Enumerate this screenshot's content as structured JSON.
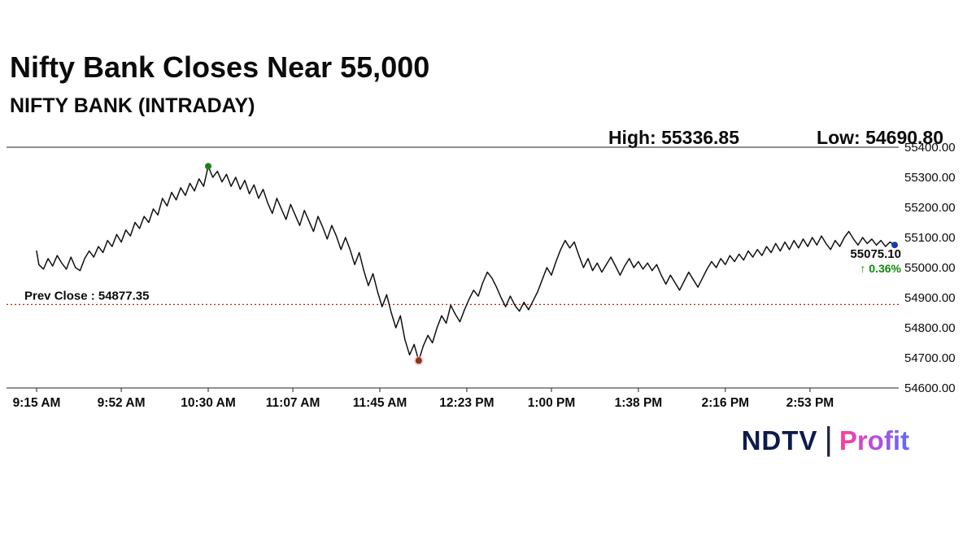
{
  "header": {
    "title": "Nifty Bank Closes Near 55,000",
    "subtitle": "NIFTY BANK (INTRADAY)",
    "high_label": "High: 55336.85",
    "low_label": "Low: 54690.80"
  },
  "footer": {
    "brand_left": "NDTV",
    "brand_divider": "|",
    "brand_right": "Profit"
  },
  "chart_data": {
    "type": "line",
    "title": "NIFTY BANK (INTRADAY)",
    "line_color": "#111111",
    "ylim": [
      54600,
      55400
    ],
    "xlim_minutes": [
      555,
      930
    ],
    "grid": "off",
    "high": 55336.85,
    "low": 54690.8,
    "last": 55075.1,
    "last_label": "55075.10",
    "change_label": "↑ 0.36%",
    "change_color": "#0b8a0b",
    "prev_close": {
      "value": 54877.35,
      "label": "Prev Close : 54877.35",
      "color": "#cc2200"
    },
    "markers": {
      "high_color": "#1e7d1e",
      "low_color": "#8b3a12",
      "low_halo": "#ffaad4",
      "last_color": "#1a3aa8"
    },
    "y_ticks": [
      {
        "v": 55400,
        "label": "55400.00"
      },
      {
        "v": 55300,
        "label": "55300.00"
      },
      {
        "v": 55200,
        "label": "55200.00"
      },
      {
        "v": 55100,
        "label": "55100.00"
      },
      {
        "v": 55000,
        "label": "55000.00"
      },
      {
        "v": 54900,
        "label": "54900.00"
      },
      {
        "v": 54800,
        "label": "54800.00"
      },
      {
        "v": 54700,
        "label": "54700.00"
      },
      {
        "v": 54600,
        "label": "54600.00"
      }
    ],
    "x_ticks": [
      {
        "t": 555,
        "label": "9:15 AM"
      },
      {
        "t": 592,
        "label": "9:52 AM"
      },
      {
        "t": 630,
        "label": "10:30 AM"
      },
      {
        "t": 667,
        "label": "11:07 AM"
      },
      {
        "t": 705,
        "label": "11:45 AM"
      },
      {
        "t": 743,
        "label": "12:23 PM"
      },
      {
        "t": 780,
        "label": "1:00 PM"
      },
      {
        "t": 818,
        "label": "1:38 PM"
      },
      {
        "t": 856,
        "label": "2:16 PM"
      },
      {
        "t": 893,
        "label": "2:53 PM"
      }
    ],
    "points": [
      [
        555,
        55055
      ],
      [
        556,
        55010
      ],
      [
        558,
        54995
      ],
      [
        560,
        55030
      ],
      [
        562,
        55005
      ],
      [
        564,
        55040
      ],
      [
        566,
        55015
      ],
      [
        568,
        54995
      ],
      [
        570,
        55035
      ],
      [
        572,
        55000
      ],
      [
        574,
        54990
      ],
      [
        576,
        55030
      ],
      [
        578,
        55055
      ],
      [
        580,
        55035
      ],
      [
        582,
        55070
      ],
      [
        584,
        55050
      ],
      [
        586,
        55090
      ],
      [
        588,
        55070
      ],
      [
        590,
        55110
      ],
      [
        592,
        55085
      ],
      [
        594,
        55125
      ],
      [
        596,
        55105
      ],
      [
        598,
        55150
      ],
      [
        600,
        55130
      ],
      [
        602,
        55170
      ],
      [
        604,
        55150
      ],
      [
        606,
        55195
      ],
      [
        608,
        55175
      ],
      [
        610,
        55230
      ],
      [
        612,
        55205
      ],
      [
        614,
        55250
      ],
      [
        616,
        55225
      ],
      [
        618,
        55265
      ],
      [
        620,
        55240
      ],
      [
        622,
        55280
      ],
      [
        624,
        55255
      ],
      [
        626,
        55295
      ],
      [
        628,
        55270
      ],
      [
        630,
        55336.85
      ],
      [
        632,
        55300
      ],
      [
        634,
        55320
      ],
      [
        636,
        55285
      ],
      [
        638,
        55310
      ],
      [
        640,
        55270
      ],
      [
        642,
        55300
      ],
      [
        644,
        55260
      ],
      [
        646,
        55290
      ],
      [
        648,
        55245
      ],
      [
        650,
        55275
      ],
      [
        652,
        55230
      ],
      [
        654,
        55260
      ],
      [
        656,
        55215
      ],
      [
        658,
        55180
      ],
      [
        660,
        55230
      ],
      [
        662,
        55195
      ],
      [
        664,
        55160
      ],
      [
        666,
        55210
      ],
      [
        668,
        55175
      ],
      [
        670,
        55140
      ],
      [
        672,
        55190
      ],
      [
        674,
        55155
      ],
      [
        676,
        55120
      ],
      [
        678,
        55170
      ],
      [
        680,
        55135
      ],
      [
        682,
        55095
      ],
      [
        684,
        55140
      ],
      [
        686,
        55105
      ],
      [
        688,
        55060
      ],
      [
        690,
        55100
      ],
      [
        692,
        55060
      ],
      [
        694,
        55010
      ],
      [
        696,
        55050
      ],
      [
        698,
        54990
      ],
      [
        700,
        54940
      ],
      [
        702,
        54980
      ],
      [
        704,
        54920
      ],
      [
        706,
        54870
      ],
      [
        708,
        54910
      ],
      [
        710,
        54850
      ],
      [
        712,
        54800
      ],
      [
        714,
        54840
      ],
      [
        716,
        54760
      ],
      [
        718,
        54710
      ],
      [
        720,
        54745
      ],
      [
        722,
        54690.8
      ],
      [
        724,
        54740
      ],
      [
        726,
        54775
      ],
      [
        728,
        54750
      ],
      [
        730,
        54800
      ],
      [
        732,
        54840
      ],
      [
        734,
        54815
      ],
      [
        736,
        54875
      ],
      [
        738,
        54845
      ],
      [
        740,
        54820
      ],
      [
        742,
        54860
      ],
      [
        744,
        54895
      ],
      [
        746,
        54925
      ],
      [
        748,
        54905
      ],
      [
        750,
        54950
      ],
      [
        752,
        54985
      ],
      [
        754,
        54965
      ],
      [
        756,
        54935
      ],
      [
        758,
        54900
      ],
      [
        760,
        54870
      ],
      [
        762,
        54905
      ],
      [
        764,
        54875
      ],
      [
        766,
        54855
      ],
      [
        768,
        54885
      ],
      [
        770,
        54860
      ],
      [
        772,
        54890
      ],
      [
        774,
        54920
      ],
      [
        776,
        54960
      ],
      [
        778,
        55000
      ],
      [
        780,
        54975
      ],
      [
        782,
        55020
      ],
      [
        784,
        55060
      ],
      [
        786,
        55090
      ],
      [
        788,
        55065
      ],
      [
        790,
        55085
      ],
      [
        792,
        55040
      ],
      [
        794,
        55000
      ],
      [
        796,
        55030
      ],
      [
        798,
        54990
      ],
      [
        800,
        55015
      ],
      [
        802,
        54985
      ],
      [
        804,
        55010
      ],
      [
        806,
        55035
      ],
      [
        808,
        55005
      ],
      [
        810,
        54975
      ],
      [
        812,
        55005
      ],
      [
        814,
        55030
      ],
      [
        816,
        55000
      ],
      [
        818,
        55020
      ],
      [
        820,
        54995
      ],
      [
        822,
        55015
      ],
      [
        824,
        54990
      ],
      [
        826,
        55010
      ],
      [
        828,
        54975
      ],
      [
        830,
        54945
      ],
      [
        832,
        54975
      ],
      [
        834,
        54950
      ],
      [
        836,
        54925
      ],
      [
        838,
        54955
      ],
      [
        840,
        54985
      ],
      [
        842,
        54960
      ],
      [
        844,
        54935
      ],
      [
        846,
        54965
      ],
      [
        848,
        54995
      ],
      [
        850,
        55020
      ],
      [
        852,
        55000
      ],
      [
        854,
        55030
      ],
      [
        856,
        55010
      ],
      [
        858,
        55040
      ],
      [
        860,
        55020
      ],
      [
        862,
        55045
      ],
      [
        864,
        55025
      ],
      [
        866,
        55055
      ],
      [
        868,
        55035
      ],
      [
        870,
        55060
      ],
      [
        872,
        55040
      ],
      [
        874,
        55070
      ],
      [
        876,
        55050
      ],
      [
        878,
        55080
      ],
      [
        880,
        55055
      ],
      [
        882,
        55085
      ],
      [
        884,
        55060
      ],
      [
        886,
        55090
      ],
      [
        888,
        55065
      ],
      [
        890,
        55095
      ],
      [
        892,
        55070
      ],
      [
        894,
        55100
      ],
      [
        896,
        55075
      ],
      [
        898,
        55105
      ],
      [
        900,
        55080
      ],
      [
        902,
        55060
      ],
      [
        904,
        55090
      ],
      [
        906,
        55070
      ],
      [
        908,
        55100
      ],
      [
        910,
        55120
      ],
      [
        912,
        55095
      ],
      [
        914,
        55075
      ],
      [
        916,
        55100
      ],
      [
        918,
        55080
      ],
      [
        920,
        55095
      ],
      [
        922,
        55075
      ],
      [
        924,
        55090
      ],
      [
        926,
        55070
      ],
      [
        928,
        55085
      ],
      [
        930,
        55075.1
      ]
    ]
  }
}
